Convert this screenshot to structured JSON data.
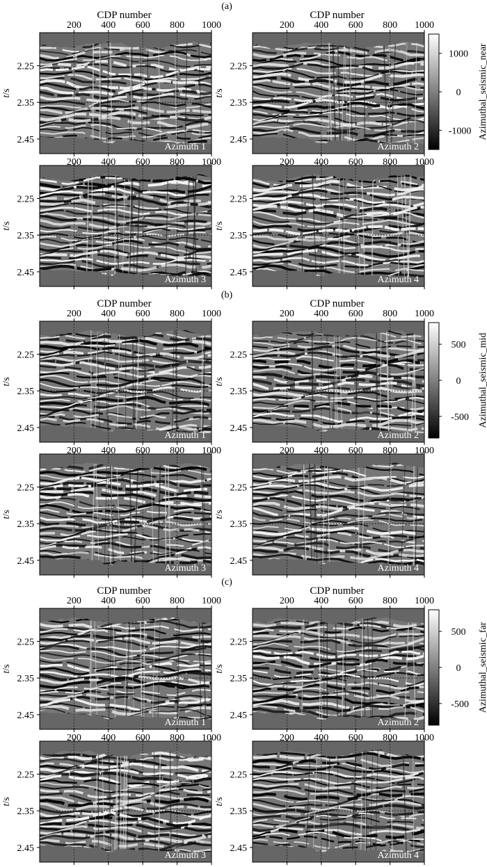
{
  "figure": {
    "x_axis_title": "CDP number",
    "y_axis_title_t": "t",
    "y_axis_title_unit": "/s",
    "background_color": "#666666",
    "section_gray": "#6a6a6a"
  },
  "chart_data": [
    {
      "type": "heatmap",
      "panel_label": "(a)",
      "colorbar_label": "Azimuthal_seismic_near",
      "colorbar_range": [
        -1500,
        1500
      ],
      "colorbar_ticks": [
        1000,
        0,
        -1000
      ],
      "x_ticks": [
        200,
        400,
        600,
        800,
        1000
      ],
      "x_range": [
        0,
        1000
      ],
      "y_ticks": [
        2.25,
        2.35,
        2.45
      ],
      "y_range": [
        2.16,
        2.49
      ],
      "gridlines": "dotted",
      "azimuths": [
        "Azimuth 1",
        "Azimuth 2",
        "Azimuth 3",
        "Azimuth 4"
      ]
    },
    {
      "type": "heatmap",
      "panel_label": "(b)",
      "colorbar_label": "Azimuthal_seismic_mid",
      "colorbar_range": [
        -800,
        800
      ],
      "colorbar_ticks": [
        500,
        0,
        -500
      ],
      "x_ticks": [
        200,
        400,
        600,
        800,
        1000
      ],
      "x_range": [
        0,
        1000
      ],
      "y_ticks": [
        2.25,
        2.35,
        2.45
      ],
      "y_range": [
        2.16,
        2.49
      ],
      "gridlines": "dotted",
      "azimuths": [
        "Azimuth 1",
        "Azimuth 2",
        "Azimuth 3",
        "Azimuth 4"
      ]
    },
    {
      "type": "heatmap",
      "panel_label": "(c)",
      "colorbar_label": "Azimuthal_seismic_far",
      "colorbar_range": [
        -800,
        800
      ],
      "colorbar_ticks": [
        500,
        0,
        -500
      ],
      "x_ticks": [
        200,
        400,
        600,
        800,
        1000
      ],
      "x_range": [
        0,
        1000
      ],
      "y_ticks": [
        2.25,
        2.35,
        2.45
      ],
      "y_range": [
        2.16,
        2.49
      ],
      "gridlines": "dotted",
      "azimuths": [
        "Azimuth 1",
        "Azimuth 2",
        "Azimuth 3",
        "Azimuth 4"
      ]
    }
  ]
}
